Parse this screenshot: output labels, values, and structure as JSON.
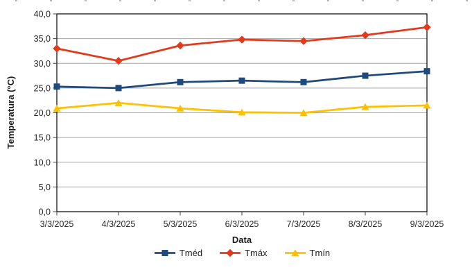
{
  "chart_data": {
    "type": "line",
    "title": "",
    "categories": [
      "3/3/2025",
      "4/3/2025",
      "5/3/2025",
      "6/3/2025",
      "7/3/2025",
      "8/3/2025",
      "9/3/2025"
    ],
    "series": [
      {
        "name": "Tméd",
        "marker": "square",
        "color": "#1F4A7C",
        "values": [
          25.3,
          25.0,
          26.2,
          26.5,
          26.2,
          27.5,
          28.4
        ]
      },
      {
        "name": "Tmáx",
        "marker": "diamond",
        "color": "#E23A1B",
        "values": [
          33.0,
          30.5,
          33.6,
          34.8,
          34.5,
          35.7,
          37.3
        ]
      },
      {
        "name": "Tmín",
        "marker": "triangle",
        "color": "#FFC000",
        "values": [
          20.9,
          22.0,
          20.9,
          20.1,
          20.0,
          21.2,
          21.5
        ]
      }
    ],
    "xlabel": "Data",
    "ylabel": "Temperatura (°C)",
    "ylim": [
      0,
      40
    ],
    "y_step": 5,
    "y_tick_labels": [
      "0,0",
      "5,0",
      "10,0",
      "15,0",
      "20,0",
      "25,0",
      "30,0",
      "35,0",
      "40,0"
    ],
    "grid": true,
    "legend_position": "bottom",
    "gridline_color": "#A6A6A6",
    "axis_color": "#000000",
    "tick_color": "#404040"
  }
}
